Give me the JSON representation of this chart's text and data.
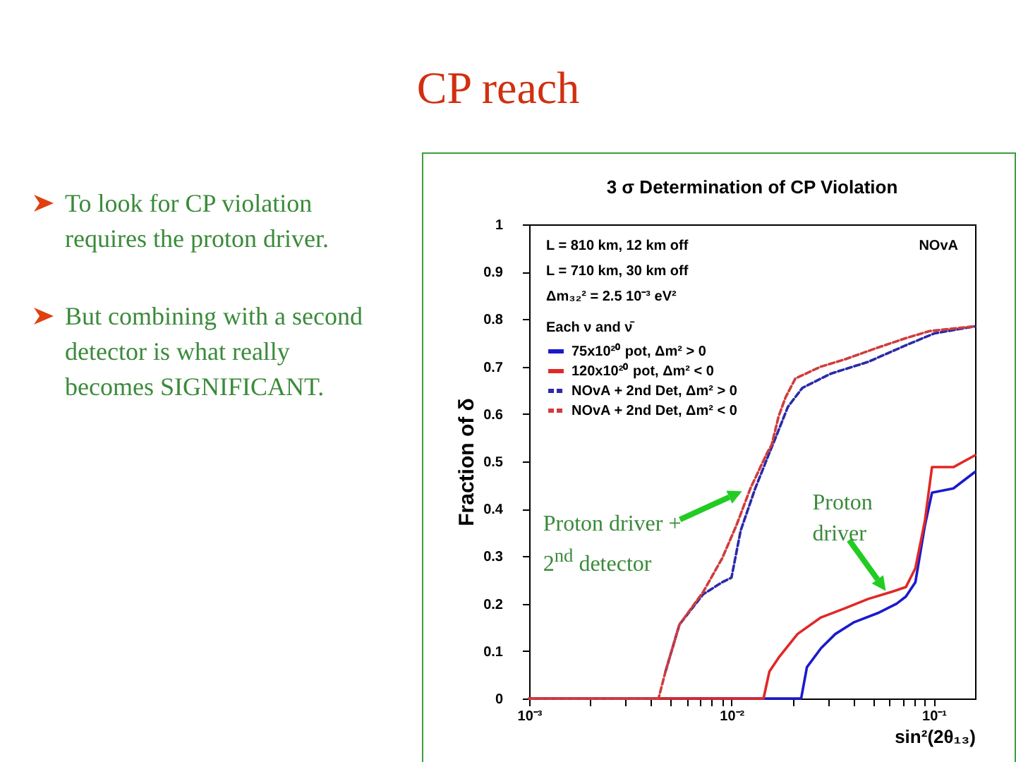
{
  "chart_data": {
    "type": "line",
    "title": "CP reach",
    "subtitle": "3 σ Determination of CP Violation",
    "xlabel": "sin²(2θ₁₃)",
    "ylabel": "Fraction of δ",
    "legend_title": "Each ν and ν̄",
    "annotations": [
      "To look for CP violation requires the proton driver.",
      "But combining with a second detector is what really becomes SIGNIFICANT.",
      "L = 810 km, 12 km off",
      "L = 710 km, 30 km off",
      "Δm₃₂² = 2.5 10⁻³ eV²",
      "NOvA",
      {
        "text": "Proton driver + 2$^{nd}$ detector",
        "x": 0.0111,
        "y": 0.44
      },
      {
        "text": "Proton driver",
        "x": 0.057,
        "y": 0.23
      }
    ],
    "log": "x",
    "legend": "top left",
    "grid": false,
    "xlim": [
      0.001,
      0.16
    ],
    "ylim": [
      0,
      1
    ],
    "xticks": [
      {
        "value": 0.001,
        "label": "10⁻³"
      },
      {
        "value": 0.002,
        "label": null
      },
      {
        "value": 0.003,
        "label": null
      },
      {
        "value": 0.004,
        "label": null
      },
      {
        "value": 0.005,
        "label": null
      },
      {
        "value": 0.006,
        "label": null
      },
      {
        "value": 0.007,
        "label": null
      },
      {
        "value": 0.008,
        "label": null
      },
      {
        "value": 0.009,
        "label": null
      },
      {
        "value": 0.01,
        "label": "10⁻²"
      },
      {
        "value": 0.02,
        "label": null
      },
      {
        "value": 0.03,
        "label": null
      },
      {
        "value": 0.04,
        "label": null
      },
      {
        "value": 0.05,
        "label": null
      },
      {
        "value": 0.06,
        "label": null
      },
      {
        "value": 0.07,
        "label": null
      },
      {
        "value": 0.08,
        "label": null
      },
      {
        "value": 0.09,
        "label": null
      },
      {
        "value": 0.1,
        "label": "10⁻¹"
      }
    ],
    "yticks": [
      0,
      0.1,
      0.2,
      0.3,
      0.4,
      0.5,
      0.6,
      0.7,
      0.8,
      0.9,
      1
    ],
    "series": [
      {
        "name": "75x10²⁰ pot, Δm² > 0",
        "color": "#1a1acc",
        "line_style": "solid",
        "x": [
          0.001,
          0.0221,
          0.0236,
          0.0277,
          0.0326,
          0.0404,
          0.0528,
          0.0655,
          0.0728,
          0.0811,
          0.0903,
          0.098,
          0.125,
          0.16
        ],
        "values": [
          0,
          0,
          0.066,
          0.106,
          0.136,
          0.161,
          0.18,
          0.2,
          0.215,
          0.245,
          0.364,
          0.434,
          0.443,
          0.478
        ]
      },
      {
        "name": "120x10²⁰ pot, Δm² < 0",
        "color": "#e02828",
        "line_style": "solid",
        "x": [
          0.001,
          0.0144,
          0.0154,
          0.0171,
          0.0212,
          0.0277,
          0.0362,
          0.0474,
          0.062,
          0.0728,
          0.0811,
          0.0903,
          0.098,
          0.125,
          0.16
        ],
        "values": [
          0,
          0,
          0.057,
          0.086,
          0.136,
          0.171,
          0.19,
          0.21,
          0.225,
          0.235,
          0.275,
          0.374,
          0.488,
          0.488,
          0.513
        ]
      },
      {
        "name": "NOvA + 2nd Det, Δm² > 0",
        "color": "#2a2aa8",
        "line_style": "dashed",
        "x": [
          0.00472,
          0.00553,
          0.00725,
          0.00898,
          0.01,
          0.0111,
          0.0131,
          0.0154,
          0.0167,
          0.019,
          0.0224,
          0.0309,
          0.0474,
          0.0728,
          0.1005,
          0.16
        ],
        "values": [
          0.057,
          0.156,
          0.22,
          0.245,
          0.255,
          0.354,
          0.443,
          0.518,
          0.555,
          0.615,
          0.655,
          0.685,
          0.71,
          0.745,
          0.77,
          0.785
        ]
      },
      {
        "name": "NOvA + 2nd Det, Δm² < 0",
        "color": "#d03c3c",
        "line_style": "dashed",
        "x": [
          0.001,
          0.00436,
          0.00472,
          0.00553,
          0.00725,
          0.00898,
          0.01055,
          0.0124,
          0.015,
          0.0158,
          0.0171,
          0.0185,
          0.0207,
          0.0277,
          0.0362,
          0.0528,
          0.0728,
          0.0953,
          0.16
        ],
        "values": [
          0,
          0,
          0.057,
          0.156,
          0.225,
          0.295,
          0.364,
          0.443,
          0.518,
          0.535,
          0.595,
          0.635,
          0.675,
          0.7,
          0.715,
          0.74,
          0.76,
          0.775,
          0.785
        ]
      }
    ]
  }
}
